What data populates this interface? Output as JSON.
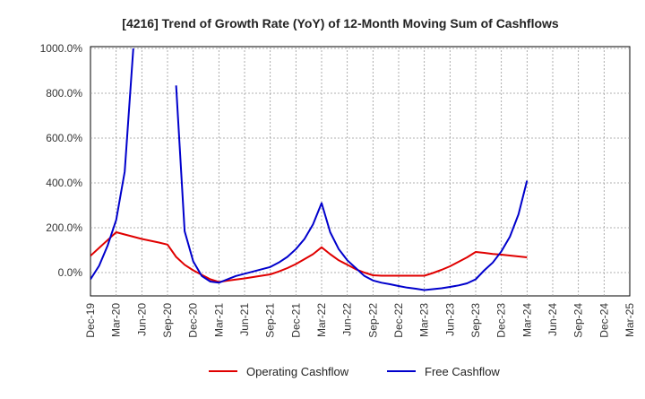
{
  "chart_data": {
    "type": "line",
    "title": "[4216]  Trend of Growth Rate (YoY) of 12-Month Moving Sum of Cashflows",
    "xlabel": "",
    "ylabel": "",
    "ylim": [
      -100,
      1000
    ],
    "yticks": [
      {
        "value": 0,
        "label": "0.0%"
      },
      {
        "value": 200,
        "label": "200.0%"
      },
      {
        "value": 400,
        "label": "400.0%"
      },
      {
        "value": 600,
        "label": "600.0%"
      },
      {
        "value": 800,
        "label": "800.0%"
      },
      {
        "value": 1000,
        "label": "1000.0%"
      }
    ],
    "xticks": [
      "Dec-19",
      "Mar-20",
      "Jun-20",
      "Sep-20",
      "Dec-20",
      "Mar-21",
      "Jun-21",
      "Sep-21",
      "Dec-21",
      "Mar-22",
      "Jun-22",
      "Sep-22",
      "Dec-22",
      "Mar-23",
      "Jun-23",
      "Sep-23",
      "Dec-23",
      "Mar-24",
      "Jun-24",
      "Sep-24",
      "Dec-24",
      "Mar-25"
    ],
    "grid": true,
    "legend_position": "bottom",
    "series": [
      {
        "name": "Operating Cashflow",
        "color": "#e00000",
        "points": [
          [
            "Dec-19",
            75
          ],
          [
            "Jan-20",
            110
          ],
          [
            "Feb-20",
            145
          ],
          [
            "Mar-20",
            180
          ],
          [
            "Apr-20",
            170
          ],
          [
            "May-20",
            160
          ],
          [
            "Jun-20",
            150
          ],
          [
            "Jul-20",
            142
          ],
          [
            "Aug-20",
            134
          ],
          [
            "Sep-20",
            125
          ],
          [
            "Oct-20",
            70
          ],
          [
            "Nov-20",
            35
          ],
          [
            "Dec-20",
            10
          ],
          [
            "Jan-21",
            -10
          ],
          [
            "Feb-21",
            -30
          ],
          [
            "Mar-21",
            -42
          ],
          [
            "Apr-21",
            -36
          ],
          [
            "May-21",
            -31
          ],
          [
            "Jun-21",
            -26
          ],
          [
            "Jul-21",
            -20
          ],
          [
            "Aug-21",
            -14
          ],
          [
            "Sep-21",
            -8
          ],
          [
            "Oct-21",
            5
          ],
          [
            "Nov-21",
            20
          ],
          [
            "Dec-21",
            38
          ],
          [
            "Jan-22",
            60
          ],
          [
            "Feb-22",
            82
          ],
          [
            "Mar-22",
            113
          ],
          [
            "Apr-22",
            82
          ],
          [
            "May-22",
            55
          ],
          [
            "Jun-22",
            35
          ],
          [
            "Jul-22",
            15
          ],
          [
            "Aug-22",
            0
          ],
          [
            "Sep-22",
            -12
          ],
          [
            "Oct-22",
            -14
          ],
          [
            "Nov-22",
            -14
          ],
          [
            "Dec-22",
            -14
          ],
          [
            "Jan-23",
            -14
          ],
          [
            "Feb-23",
            -14
          ],
          [
            "Mar-23",
            -14
          ],
          [
            "Apr-23",
            -2
          ],
          [
            "May-23",
            12
          ],
          [
            "Jun-23",
            28
          ],
          [
            "Jul-23",
            48
          ],
          [
            "Aug-23",
            68
          ],
          [
            "Sep-23",
            92
          ],
          [
            "Oct-23",
            88
          ],
          [
            "Nov-23",
            83
          ],
          [
            "Dec-23",
            80
          ],
          [
            "Jan-24",
            76
          ],
          [
            "Feb-24",
            72
          ],
          [
            "Mar-24",
            68
          ]
        ]
      },
      {
        "name": "Free Cashflow",
        "color": "#0000cc",
        "points": [
          [
            "Dec-19",
            -30
          ],
          [
            "Jan-20",
            30
          ],
          [
            "Feb-20",
            120
          ],
          [
            "Mar-20",
            235
          ],
          [
            "Apr-20",
            450
          ],
          [
            "May-20",
            1000
          ],
          [
            "Sep-20",
            null
          ],
          [
            "Oct-20",
            835
          ],
          [
            "Nov-20",
            185
          ],
          [
            "Dec-20",
            50
          ],
          [
            "Jan-21",
            -15
          ],
          [
            "Feb-21",
            -40
          ],
          [
            "Mar-21",
            -45
          ],
          [
            "Apr-21",
            -30
          ],
          [
            "May-21",
            -15
          ],
          [
            "Jun-21",
            -5
          ],
          [
            "Jul-21",
            5
          ],
          [
            "Aug-21",
            15
          ],
          [
            "Sep-21",
            25
          ],
          [
            "Oct-21",
            45
          ],
          [
            "Nov-21",
            70
          ],
          [
            "Dec-21",
            105
          ],
          [
            "Jan-22",
            150
          ],
          [
            "Feb-22",
            215
          ],
          [
            "Mar-22",
            310
          ],
          [
            "Apr-22",
            180
          ],
          [
            "May-22",
            105
          ],
          [
            "Jun-22",
            55
          ],
          [
            "Jul-22",
            20
          ],
          [
            "Aug-22",
            -15
          ],
          [
            "Sep-22",
            -35
          ],
          [
            "Oct-22",
            -45
          ],
          [
            "Nov-22",
            -52
          ],
          [
            "Dec-22",
            -60
          ],
          [
            "Jan-23",
            -67
          ],
          [
            "Feb-23",
            -72
          ],
          [
            "Mar-23",
            -78
          ],
          [
            "Apr-23",
            -74
          ],
          [
            "May-23",
            -70
          ],
          [
            "Jun-23",
            -64
          ],
          [
            "Jul-23",
            -57
          ],
          [
            "Aug-23",
            -48
          ],
          [
            "Sep-23",
            -30
          ],
          [
            "Oct-23",
            10
          ],
          [
            "Nov-23",
            45
          ],
          [
            "Dec-23",
            95
          ],
          [
            "Jan-24",
            160
          ],
          [
            "Feb-24",
            260
          ],
          [
            "Mar-24",
            410
          ]
        ]
      }
    ]
  }
}
